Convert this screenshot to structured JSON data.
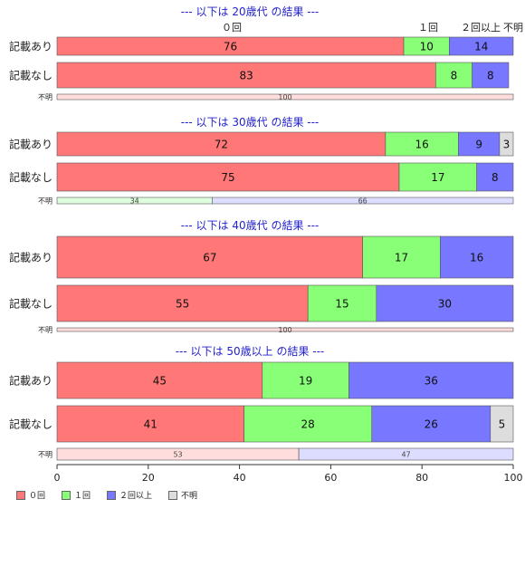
{
  "chart_data": {
    "type": "bar",
    "orientation": "horizontal",
    "stacked": true,
    "xlim": [
      0,
      100
    ],
    "xticks": [
      0,
      20,
      40,
      60,
      80,
      100
    ],
    "column_headers": [
      "０回",
      "１回",
      "２回以上",
      "不明"
    ],
    "colors": {
      "zero": "#ff7777",
      "one": "#88ff77",
      "two_plus": "#7777ff",
      "unknown": "#dddddd",
      "unknown_zero_light": "#ffdddd",
      "unknown_one_light": "#ddffdd",
      "unknown_two_light": "#ddddff",
      "title": "#2222cc"
    },
    "groups": [
      {
        "title": "--- 以下は 20歳代 の結果 ---",
        "show_headers": true,
        "rows": [
          {
            "label": "記載あり",
            "values": [
              76,
              10,
              14,
              0
            ]
          },
          {
            "label": "記載なし",
            "values": [
              83,
              8,
              8,
              0
            ]
          },
          {
            "label": "不明",
            "small": true,
            "values": [
              100,
              0,
              0,
              0
            ]
          }
        ]
      },
      {
        "title": "--- 以下は 30歳代 の結果 ---",
        "rows": [
          {
            "label": "記載あり",
            "values": [
              72,
              16,
              9,
              3
            ]
          },
          {
            "label": "記載なし",
            "values": [
              75,
              17,
              8,
              0
            ]
          },
          {
            "label": "不明",
            "small": true,
            "values": [
              0,
              34,
              66,
              0
            ]
          }
        ]
      },
      {
        "title": "--- 以下は 40歳代 の結果 ---",
        "rows": [
          {
            "label": "記載あり",
            "values": [
              67,
              17,
              16,
              0
            ]
          },
          {
            "label": "記載なし",
            "values": [
              55,
              15,
              30,
              0
            ]
          },
          {
            "label": "不明",
            "small": true,
            "values": [
              100,
              0,
              0,
              0
            ]
          }
        ]
      },
      {
        "title": "--- 以下は 50歳以上 の結果 ---",
        "rows": [
          {
            "label": "記載あり",
            "values": [
              45,
              19,
              36,
              0
            ]
          },
          {
            "label": "記載なし",
            "values": [
              41,
              28,
              26,
              5
            ]
          },
          {
            "label": "不明",
            "small": true,
            "values": [
              53,
              0,
              47,
              0
            ]
          }
        ]
      }
    ],
    "legend": {
      "placement": "bottom-left",
      "entries": [
        "０回",
        "１回",
        "２回以上",
        "不明"
      ]
    }
  }
}
